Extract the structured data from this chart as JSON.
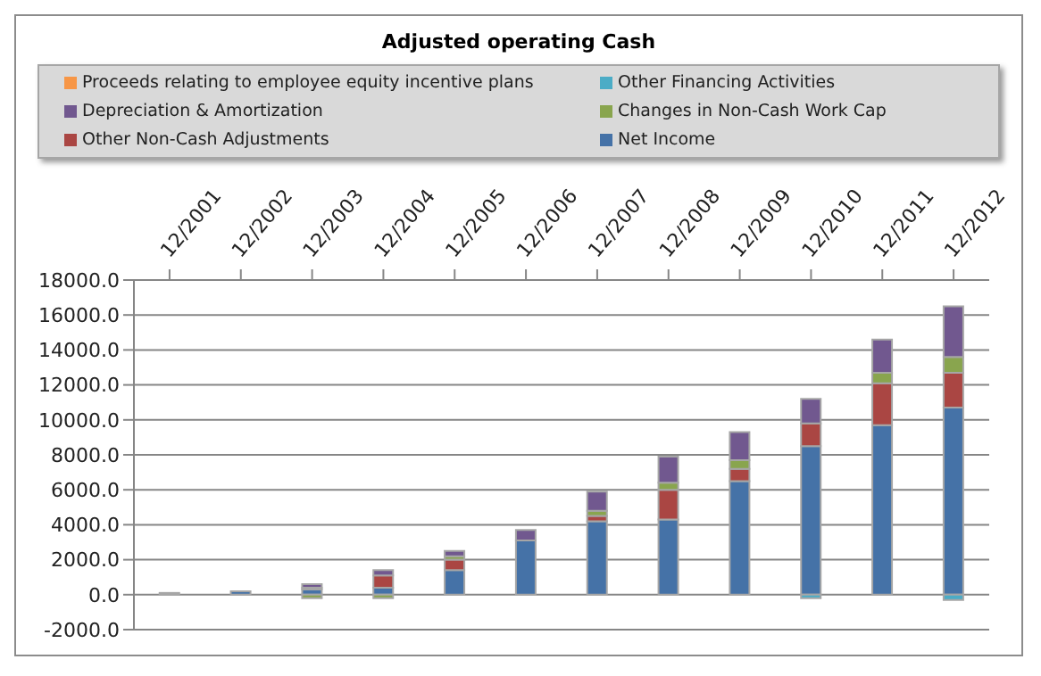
{
  "chart_data": {
    "type": "bar",
    "title": "Adjusted operating Cash",
    "stacked": true,
    "legend": "top",
    "grid": "y",
    "categories": [
      "12/2001",
      "12/2002",
      "12/2003",
      "12/2004",
      "12/2005",
      "12/2006",
      "12/2007",
      "12/2008",
      "12/2009",
      "12/2010",
      "12/2011",
      "12/2012"
    ],
    "series": [
      {
        "name": "Net Income",
        "color": "#4572a7",
        "values": [
          100,
          200,
          300,
          400,
          1400,
          3100,
          4200,
          4300,
          6500,
          8500,
          9700,
          10700
        ]
      },
      {
        "name": "Other Non-Cash Adjustments",
        "color": "#aa4643",
        "values": [
          0,
          0,
          100,
          700,
          600,
          0,
          300,
          1700,
          700,
          1300,
          2400,
          2000
        ]
      },
      {
        "name": "Changes in Non-Cash Work Cap",
        "color": "#89a54e",
        "values": [
          0,
          0,
          -200,
          -200,
          200,
          0,
          300,
          400,
          500,
          0,
          600,
          900
        ]
      },
      {
        "name": "Depreciation & Amortization",
        "color": "#71588f",
        "values": [
          0,
          0,
          200,
          300,
          300,
          600,
          1100,
          1500,
          1600,
          1400,
          1900,
          2900
        ]
      },
      {
        "name": "Other Financing Activities",
        "color": "#4bacc6",
        "values": [
          0,
          0,
          0,
          0,
          0,
          0,
          0,
          0,
          0,
          -200,
          0,
          -300
        ]
      },
      {
        "name": "Proceeds relating to employee equity incentive plans",
        "color": "#f79646",
        "values": [
          0,
          0,
          0,
          0,
          0,
          0,
          0,
          0,
          0,
          0,
          0,
          0
        ]
      }
    ],
    "ylim": [
      -2000,
      18000
    ],
    "yticks": [
      {
        "value": -2000,
        "label": "-2000.0"
      },
      {
        "value": 0,
        "label": "0.0"
      },
      {
        "value": 2000,
        "label": "2000.0"
      },
      {
        "value": 4000,
        "label": "4000.0"
      },
      {
        "value": 6000,
        "label": "6000.0"
      },
      {
        "value": 8000,
        "label": "8000.0"
      },
      {
        "value": 10000,
        "label": "10000.0"
      },
      {
        "value": 12000,
        "label": "12000.0"
      },
      {
        "value": 14000,
        "label": "14000.0"
      },
      {
        "value": 16000,
        "label": "16000.0"
      },
      {
        "value": 18000,
        "label": "18000.0"
      }
    ]
  }
}
